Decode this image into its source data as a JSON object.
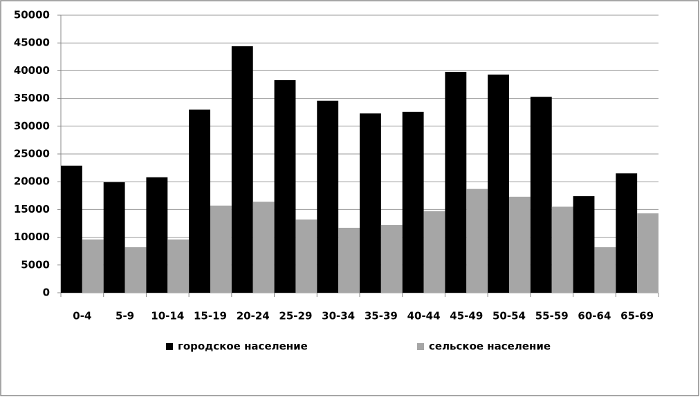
{
  "chart_data": {
    "type": "bar",
    "categories": [
      "0-4",
      "5-9",
      "10-14",
      "15-19",
      "20-24",
      "25-29",
      "30-34",
      "35-39",
      "40-44",
      "45-49",
      "50-54",
      "55-59",
      "60-64",
      "65-69"
    ],
    "series": [
      {
        "name": "городское население",
        "color": "#000000",
        "values": [
          22900,
          19900,
          20800,
          33000,
          44400,
          38300,
          34600,
          32300,
          32600,
          39800,
          39300,
          35300,
          17400,
          21500
        ]
      },
      {
        "name": "сельское население",
        "color": "#a6a6a6",
        "values": [
          9600,
          8200,
          9600,
          15700,
          16400,
          13200,
          11700,
          12200,
          14700,
          18700,
          17300,
          15500,
          8200,
          14300
        ]
      }
    ],
    "ylim": [
      0,
      50000
    ],
    "yticks": [
      0,
      5000,
      10000,
      15000,
      20000,
      25000,
      30000,
      35000,
      40000,
      45000,
      50000
    ],
    "grid": true,
    "legend": "bottom"
  }
}
